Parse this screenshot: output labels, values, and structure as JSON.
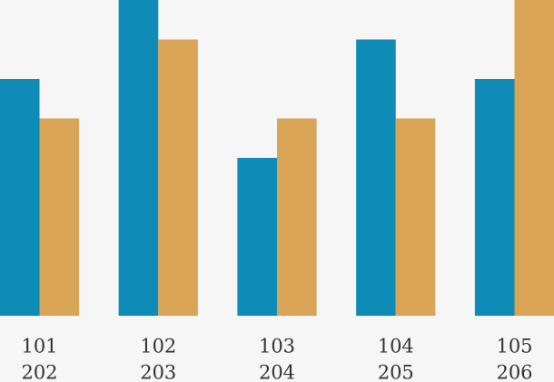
{
  "chart_data": {
    "type": "bar",
    "categories": [
      [
        "101",
        "202"
      ],
      [
        "102",
        "203"
      ],
      [
        "103",
        "204"
      ],
      [
        "104",
        "205"
      ],
      [
        "105",
        "206"
      ]
    ],
    "series": [
      {
        "color": "#0f8bb8",
        "values": [
          6,
          8,
          4,
          7,
          6
        ]
      },
      {
        "color": "#d9a455",
        "values": [
          5,
          7,
          5,
          5,
          8
        ]
      }
    ],
    "ylim": [
      0,
      8
    ]
  }
}
